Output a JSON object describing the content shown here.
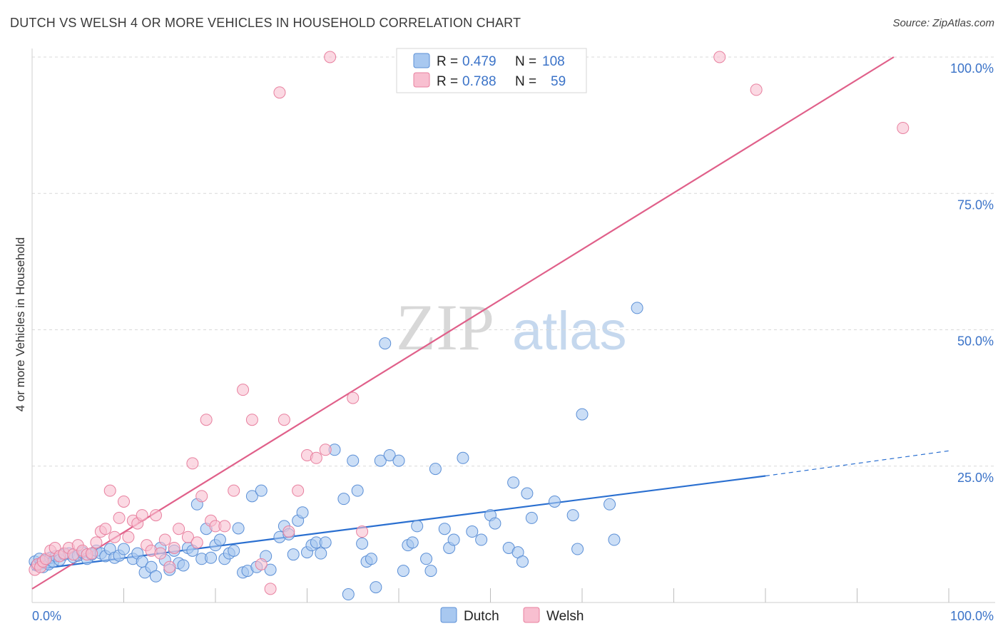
{
  "title": "DUTCH VS WELSH 4 OR MORE VEHICLES IN HOUSEHOLD CORRELATION CHART",
  "source": "Source: ZipAtlas.com",
  "watermark": {
    "zip": "ZIP",
    "atlas": "atlas"
  },
  "colors": {
    "dutch_fill": "#a8c8f0",
    "dutch_stroke": "#5b8fd6",
    "dutch_line": "#2a6fd0",
    "welsh_fill": "#f8bfd0",
    "welsh_stroke": "#e8809f",
    "welsh_line": "#e0608a",
    "grid": "#d9d9d9",
    "tick_text": "#3b73c8"
  },
  "legend": {
    "dutch": {
      "r_label": "R =",
      "r_value": "0.479",
      "n_label": "N =",
      "n_value": "108"
    },
    "welsh": {
      "r_label": "R =",
      "r_value": "0.788",
      "n_label": "N =",
      "n_value": "59"
    }
  },
  "chart_data": {
    "type": "scatter",
    "title": "DUTCH VS WELSH 4 OR MORE VEHICLES IN HOUSEHOLD CORRELATION CHART",
    "xlabel": "",
    "ylabel": "4 or more Vehicles in Household",
    "xlim": [
      0,
      100
    ],
    "ylim": [
      0,
      100
    ],
    "x_tick_labels": [
      "0.0%",
      "100.0%"
    ],
    "y_tick_labels": [
      "25.0%",
      "50.0%",
      "75.0%",
      "100.0%"
    ],
    "y_tick_values": [
      25,
      50,
      75,
      100
    ],
    "legend_position": "top-center",
    "series": [
      {
        "name": "Dutch",
        "r": 0.479,
        "n": 108,
        "trend": {
          "x0": 0,
          "y0": 6.0,
          "x1": 80,
          "y1": 23.2,
          "dashed_to_x": 100,
          "dashed_to_y": 27.8
        },
        "points": [
          [
            0.3,
            7.5
          ],
          [
            0.5,
            6.8
          ],
          [
            0.8,
            8.0
          ],
          [
            1.0,
            7.2
          ],
          [
            1.2,
            6.5
          ],
          [
            1.5,
            7.8
          ],
          [
            1.8,
            7.0
          ],
          [
            2.0,
            8.2
          ],
          [
            2.3,
            7.5
          ],
          [
            2.6,
            8.5
          ],
          [
            3.0,
            7.8
          ],
          [
            3.5,
            8.8
          ],
          [
            4.0,
            9.0
          ],
          [
            4.5,
            8.3
          ],
          [
            5.0,
            8.6
          ],
          [
            5.5,
            9.2
          ],
          [
            6.0,
            8.0
          ],
          [
            6.5,
            8.8
          ],
          [
            7.0,
            9.5
          ],
          [
            7.5,
            9.0
          ],
          [
            8.0,
            8.5
          ],
          [
            8.5,
            9.8
          ],
          [
            9.0,
            8.2
          ],
          [
            9.5,
            8.6
          ],
          [
            10.0,
            9.8
          ],
          [
            11.0,
            8.0
          ],
          [
            11.5,
            9.0
          ],
          [
            12.0,
            7.5
          ],
          [
            12.3,
            5.5
          ],
          [
            13.0,
            6.5
          ],
          [
            13.5,
            4.8
          ],
          [
            14.0,
            10.0
          ],
          [
            14.5,
            7.8
          ],
          [
            15.0,
            6.0
          ],
          [
            15.5,
            9.5
          ],
          [
            16.0,
            7.2
          ],
          [
            16.5,
            6.8
          ],
          [
            17.0,
            10.0
          ],
          [
            17.5,
            9.5
          ],
          [
            18.0,
            18.0
          ],
          [
            18.5,
            8.0
          ],
          [
            19.0,
            13.5
          ],
          [
            19.5,
            8.2
          ],
          [
            20.0,
            10.5
          ],
          [
            20.5,
            11.5
          ],
          [
            21.0,
            8.0
          ],
          [
            21.5,
            9.0
          ],
          [
            22.0,
            9.5
          ],
          [
            22.5,
            13.6
          ],
          [
            23.0,
            5.5
          ],
          [
            23.5,
            5.8
          ],
          [
            24.0,
            19.5
          ],
          [
            24.5,
            6.5
          ],
          [
            25.0,
            20.5
          ],
          [
            25.5,
            8.5
          ],
          [
            26.0,
            6.0
          ],
          [
            27.0,
            12.0
          ],
          [
            27.5,
            14.0
          ],
          [
            28.0,
            12.5
          ],
          [
            28.5,
            8.8
          ],
          [
            29.0,
            15.0
          ],
          [
            29.5,
            16.5
          ],
          [
            30.0,
            9.2
          ],
          [
            30.5,
            10.5
          ],
          [
            31.0,
            11.0
          ],
          [
            31.5,
            9.0
          ],
          [
            32.0,
            11.0
          ],
          [
            33.0,
            28.0
          ],
          [
            34.0,
            19.0
          ],
          [
            34.5,
            1.5
          ],
          [
            35.0,
            26.0
          ],
          [
            35.5,
            20.5
          ],
          [
            36.0,
            10.8
          ],
          [
            36.5,
            7.5
          ],
          [
            37.0,
            8.0
          ],
          [
            37.5,
            2.8
          ],
          [
            38.0,
            26.0
          ],
          [
            38.5,
            47.5
          ],
          [
            39.0,
            27.0
          ],
          [
            40.0,
            26.0
          ],
          [
            40.5,
            5.8
          ],
          [
            41.0,
            10.5
          ],
          [
            41.5,
            11.0
          ],
          [
            42.0,
            14.0
          ],
          [
            43.0,
            8.0
          ],
          [
            43.5,
            5.8
          ],
          [
            44.0,
            24.5
          ],
          [
            45.0,
            13.5
          ],
          [
            45.5,
            10.0
          ],
          [
            46.0,
            11.5
          ],
          [
            47.0,
            26.5
          ],
          [
            48.0,
            13.0
          ],
          [
            49.0,
            11.5
          ],
          [
            50.0,
            16.0
          ],
          [
            50.5,
            14.5
          ],
          [
            52.0,
            10.0
          ],
          [
            52.5,
            22.0
          ],
          [
            53.0,
            9.2
          ],
          [
            53.5,
            7.5
          ],
          [
            54.0,
            20.0
          ],
          [
            54.5,
            15.5
          ],
          [
            57.0,
            18.5
          ],
          [
            59.0,
            16.0
          ],
          [
            59.5,
            9.8
          ],
          [
            60.0,
            34.5
          ],
          [
            63.0,
            18.0
          ],
          [
            63.5,
            11.5
          ],
          [
            66.0,
            54.0
          ]
        ]
      },
      {
        "name": "Welsh",
        "r": 0.788,
        "n": 59,
        "trend": {
          "x0": 0,
          "y0": 2.5,
          "x1": 94,
          "y1": 100
        },
        "points": [
          [
            0.3,
            6.0
          ],
          [
            0.6,
            7.0
          ],
          [
            0.9,
            6.5
          ],
          [
            1.2,
            7.5
          ],
          [
            1.5,
            8.0
          ],
          [
            2.0,
            9.5
          ],
          [
            2.5,
            10.0
          ],
          [
            3.0,
            8.5
          ],
          [
            3.5,
            9.0
          ],
          [
            4.0,
            10.0
          ],
          [
            4.5,
            8.8
          ],
          [
            5.0,
            10.5
          ],
          [
            5.5,
            9.5
          ],
          [
            6.0,
            8.8
          ],
          [
            6.5,
            9.0
          ],
          [
            7.0,
            11.0
          ],
          [
            7.5,
            13.0
          ],
          [
            8.0,
            13.5
          ],
          [
            8.5,
            20.5
          ],
          [
            9.0,
            12.0
          ],
          [
            9.5,
            15.5
          ],
          [
            10.0,
            18.5
          ],
          [
            10.5,
            12.0
          ],
          [
            11.0,
            15.0
          ],
          [
            11.5,
            14.5
          ],
          [
            12.0,
            16.0
          ],
          [
            12.5,
            10.5
          ],
          [
            13.0,
            9.5
          ],
          [
            13.5,
            16.0
          ],
          [
            14.0,
            9.0
          ],
          [
            14.5,
            11.5
          ],
          [
            15.0,
            6.5
          ],
          [
            15.5,
            10.0
          ],
          [
            16.0,
            13.5
          ],
          [
            17.0,
            12.0
          ],
          [
            17.5,
            25.5
          ],
          [
            18.0,
            11.0
          ],
          [
            18.5,
            19.5
          ],
          [
            19.0,
            33.5
          ],
          [
            19.5,
            15.0
          ],
          [
            20.0,
            14.0
          ],
          [
            21.0,
            14.0
          ],
          [
            22.0,
            20.5
          ],
          [
            23.0,
            39.0
          ],
          [
            24.0,
            33.5
          ],
          [
            25.0,
            7.0
          ],
          [
            26.0,
            2.5
          ],
          [
            27.0,
            93.5
          ],
          [
            27.5,
            33.5
          ],
          [
            28.0,
            13.0
          ],
          [
            29.0,
            20.5
          ],
          [
            30.0,
            27.0
          ],
          [
            31.0,
            26.5
          ],
          [
            32.0,
            28.0
          ],
          [
            32.5,
            100.0
          ],
          [
            35.0,
            37.5
          ],
          [
            36.0,
            13.0
          ],
          [
            75.0,
            100.0
          ],
          [
            79.0,
            94.0
          ],
          [
            95.0,
            87.0
          ]
        ]
      }
    ]
  }
}
